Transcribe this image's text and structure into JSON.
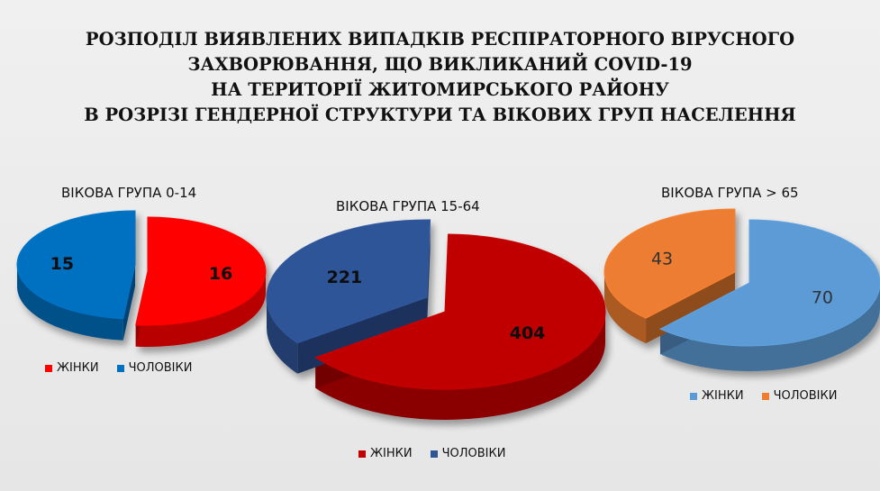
{
  "title_lines": [
    "РОЗПОДІЛ ВИЯВЛЕНИХ ВИПАДКІВ РЕСПІРАТОРНОГО ВІРУСНОГО",
    "ЗАХВОРЮВАННЯ, ЩО ВИКЛИКАНИЙ COVID-19",
    "НА ТЕРИТОРІЇ ЖИТОМИРСЬКОГО РАЙОНУ",
    "В РОЗРІЗІ ГЕНДЕРНОЇ СТРУКТУРИ ТА ВІКОВИХ ГРУП НАСЕЛЕННЯ"
  ],
  "chart_data": [
    {
      "type": "pie",
      "title": "ВІКОВА ГРУПА 0-14",
      "categories": [
        "ЖІНКИ",
        "ЧОЛОВІКИ"
      ],
      "values": [
        16,
        15
      ],
      "colors": [
        "#ff0000",
        "#0070c0"
      ],
      "data_labels": [
        "16",
        "15"
      ]
    },
    {
      "type": "pie",
      "title": "ВІКОВА ГРУПА 15-64",
      "categories": [
        "ЖІНКИ",
        "ЧОЛОВІКИ"
      ],
      "values": [
        404,
        221
      ],
      "colors": [
        "#c00000",
        "#2f5597"
      ],
      "data_labels": [
        "404",
        "221"
      ]
    },
    {
      "type": "pie",
      "title": "ВІКОВА ГРУПА > 65",
      "categories": [
        "ЖІНКИ",
        "ЧОЛОВІКИ"
      ],
      "values": [
        70,
        43
      ],
      "colors": [
        "#5b9bd5",
        "#ed7d31"
      ],
      "data_labels": [
        "70",
        "43"
      ]
    }
  ]
}
